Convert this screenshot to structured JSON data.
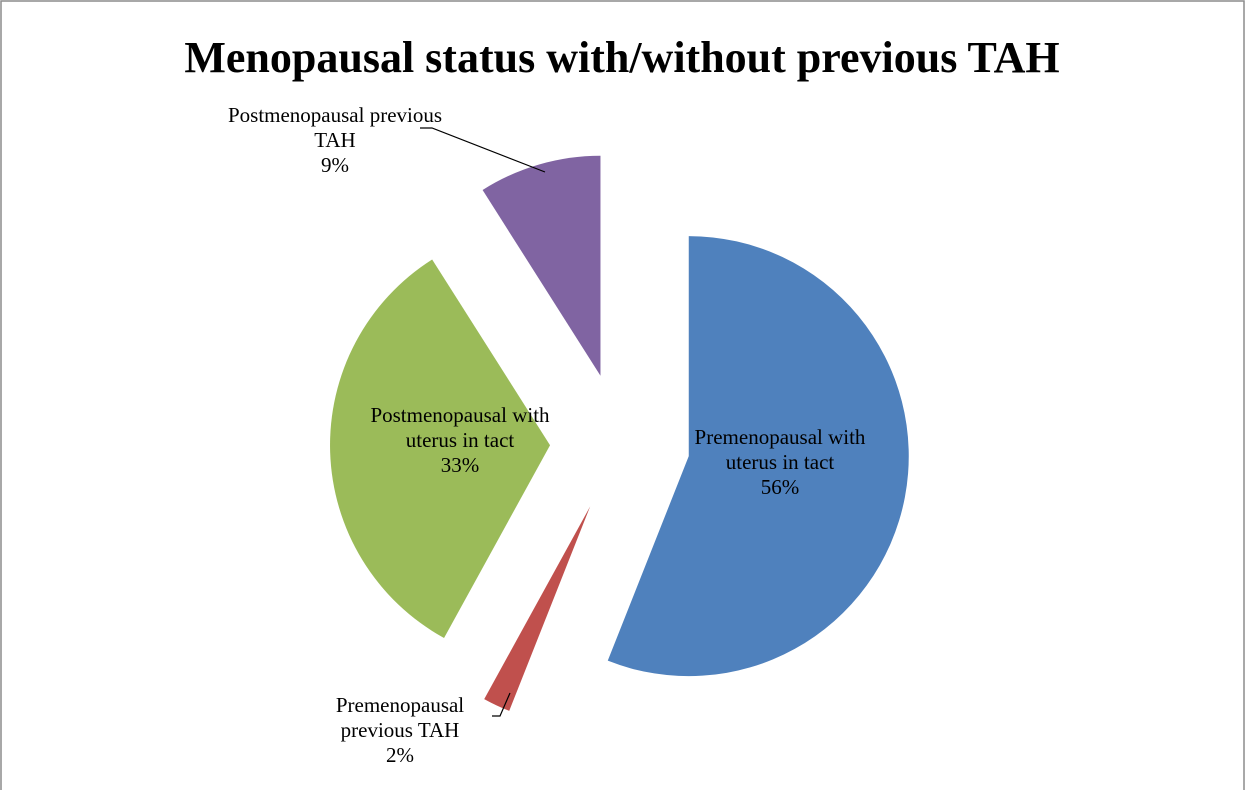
{
  "chart_data": {
    "type": "pie",
    "title": "Menopausal status with/without previous TAH",
    "categories": [
      "Premenopausal with uterus in tact",
      "Premenopausal previous TAH",
      "Postmenopausal with uterus in tact",
      "Postmenopausal previous TAH"
    ],
    "values": [
      56,
      2,
      33,
      9
    ],
    "value_labels": [
      "56%",
      "2%",
      "33%",
      "9%"
    ],
    "colors": [
      "#4f81bd",
      "#c0504d",
      "#9bbb59",
      "#8064a2"
    ]
  }
}
